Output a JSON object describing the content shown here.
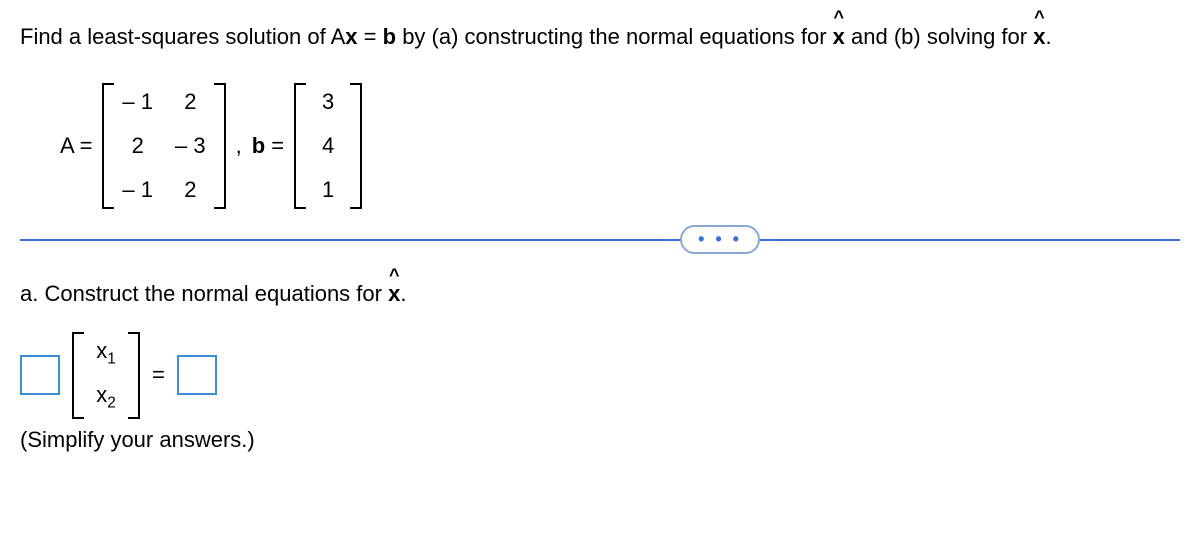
{
  "prompt": {
    "prefix": "Find a least-squares solution of A",
    "x1": "x",
    "eq": " = ",
    "b1": "b",
    "mid": " by (a) constructing the normal equations for ",
    "x2": "x",
    "mid2": " and (b) solving for ",
    "x3": "x",
    "suffix": "."
  },
  "matrices": {
    "A_label": "A =",
    "A": [
      [
        "– 1",
        "2"
      ],
      [
        "2",
        "– 3"
      ],
      [
        "– 1",
        "2"
      ]
    ],
    "comma": ",",
    "b_label": "b",
    "b_eq": " = ",
    "b": [
      [
        "3"
      ],
      [
        "4"
      ],
      [
        "1"
      ]
    ]
  },
  "dots": "• • •",
  "parta": {
    "prefix": "a. Construct the normal equations for ",
    "x": "x",
    "suffix": "."
  },
  "vector": {
    "x1": "x",
    "x1s": "1",
    "x2": "x",
    "x2s": "2"
  },
  "equals": "=",
  "simplify": "(Simplify your answers.)"
}
